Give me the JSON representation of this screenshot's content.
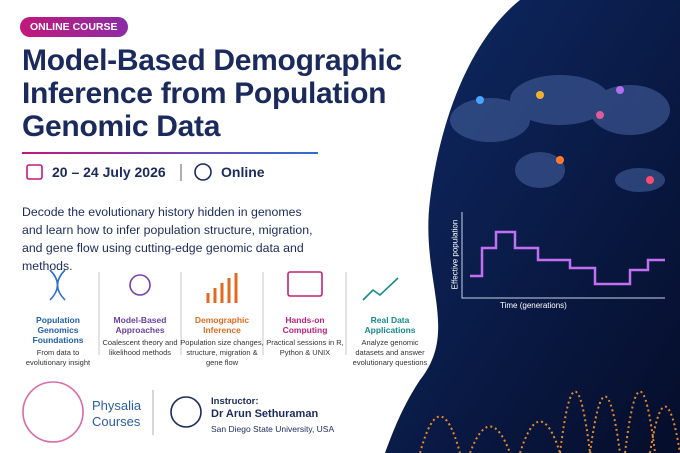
{
  "badge": "ONLINE COURSE",
  "title": {
    "lines": [
      "Model-Based Demographic",
      "Inference from Population",
      "Genomic Data"
    ]
  },
  "event": {
    "dates": "20 – 24 July 2026",
    "format": "Online"
  },
  "description": "Decode the evolutionary history hidden in genomes and learn how to infer population structure, migration, and gene flow using cutting-edge genomic data and methods.",
  "features": [
    {
      "title": "Population Genomics Foundations",
      "text": "From data to evolutionary insight"
    },
    {
      "title": "Model-Based Approaches",
      "text": "Coalescent theory and likelihood methods"
    },
    {
      "title": "Demographic Inference",
      "text": "Population size changes, structure, migration & gene flow"
    },
    {
      "title": "Hands-on Computing",
      "text": "Practical sessions in R, Python & UNIX"
    },
    {
      "title": "Real Data Applications",
      "text": "Analyze genomic datasets and answer evolutionary questions"
    }
  ],
  "organizer": {
    "name_line1": "Physalia",
    "name_line2": "Courses"
  },
  "instructor": {
    "label": "Instructor:",
    "name": "Dr Arun Sethuraman",
    "affiliation": "San Diego State University, USA"
  },
  "illustration": {
    "y_label": "Effective population",
    "x_label": "Time (generations)"
  }
}
